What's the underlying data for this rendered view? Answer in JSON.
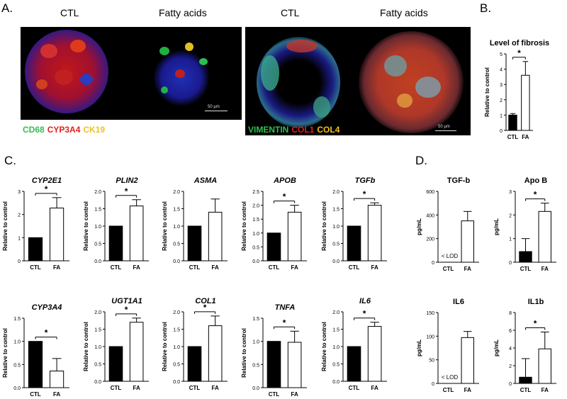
{
  "panels": {
    "A": "A.",
    "B": "B.",
    "C": "C.",
    "D": "D."
  },
  "panel_a": {
    "left": {
      "ctl_label": "CTL",
      "fa_label": "Fatty acids",
      "scale": "50 µm",
      "stains": [
        {
          "text": "CD68",
          "color": "#2fbf4f"
        },
        {
          "text": "CYP3A4",
          "color": "#e02020"
        },
        {
          "text": "CK19",
          "color": "#f0c020"
        }
      ]
    },
    "right": {
      "ctl_label": "CTL",
      "fa_label": "Fatty acids",
      "scale": "50 µm",
      "stains": [
        {
          "text": "VIMENTIN",
          "color": "#2fbf4f"
        },
        {
          "text": "COL1",
          "color": "#e02020"
        },
        {
          "text": "COL4",
          "color": "#f0c020"
        }
      ]
    }
  },
  "chart_data": [
    {
      "id": "fibrosis",
      "type": "bar",
      "title": "Level of fibrosis",
      "title_style": "bold",
      "categories": [
        "CTL",
        "FA"
      ],
      "values": [
        1.0,
        3.6
      ],
      "errors": [
        0.1,
        0.9
      ],
      "ylabel": "Relative to control",
      "ylim": [
        0,
        5
      ],
      "ticks": [
        "0",
        "1",
        "2",
        "3",
        "4",
        "5"
      ],
      "sig": "*"
    },
    {
      "id": "cyp2e1",
      "type": "bar",
      "title": "CYP2E1",
      "title_style": "italic",
      "categories": [
        "CTL",
        "FA"
      ],
      "values": [
        1.0,
        2.28
      ],
      "errors": [
        0,
        0.45
      ],
      "ylabel": "Relative to control",
      "ylim": [
        0,
        3
      ],
      "ticks": [
        "0",
        "1",
        "2",
        "3"
      ],
      "sig": "*"
    },
    {
      "id": "plin2",
      "type": "bar",
      "title": "PLIN2",
      "title_style": "italic",
      "categories": [
        "CTL",
        "FA"
      ],
      "values": [
        1.0,
        1.58
      ],
      "errors": [
        0,
        0.18
      ],
      "ylabel": "Relative to control",
      "ylim": [
        0,
        2
      ],
      "ticks": [
        "0.0",
        "0.5",
        "1.0",
        "1.5",
        "2.0"
      ],
      "sig": "*"
    },
    {
      "id": "asma",
      "type": "bar",
      "title": "ASMA",
      "title_style": "italic",
      "categories": [
        "CTL",
        "FA"
      ],
      "values": [
        1.0,
        1.4
      ],
      "errors": [
        0,
        0.38
      ],
      "ylabel": "Relative to control",
      "ylim": [
        0,
        2
      ],
      "ticks": [
        "0.0",
        "0.5",
        "1.0",
        "1.5",
        "2.0"
      ],
      "sig": ""
    },
    {
      "id": "apob",
      "type": "bar",
      "title": "APOB",
      "title_style": "italic",
      "categories": [
        "CTL",
        "FA"
      ],
      "values": [
        1.0,
        1.75
      ],
      "errors": [
        0,
        0.25
      ],
      "ylabel": "Relative to control",
      "ylim": [
        0,
        2.5
      ],
      "ticks": [
        "0.0",
        "0.5",
        "1.0",
        "1.5",
        "2.0",
        "2.5"
      ],
      "sig": "*"
    },
    {
      "id": "tgfb",
      "type": "bar",
      "title": "TGFb",
      "title_style": "italic",
      "categories": [
        "CTL",
        "FA"
      ],
      "values": [
        1.0,
        1.6
      ],
      "errors": [
        0,
        0.07
      ],
      "ylabel": "Relative to control",
      "ylim": [
        0,
        2
      ],
      "ticks": [
        "0.0",
        "0.5",
        "1.0",
        "1.5",
        "2.0"
      ],
      "sig": "*"
    },
    {
      "id": "cyp3a4",
      "type": "bar",
      "title": "CYP3A4",
      "title_style": "italic",
      "categories": [
        "CTL",
        "FA"
      ],
      "values": [
        1.0,
        0.36
      ],
      "errors": [
        0,
        0.27
      ],
      "ylabel": "Relative to control",
      "ylim": [
        0,
        1.5
      ],
      "ticks": [
        "0.0",
        "0.5",
        "1.0",
        "1.5"
      ],
      "sig": "*"
    },
    {
      "id": "ugt1a1",
      "type": "bar",
      "title": "UGT1A1",
      "title_style": "italic",
      "categories": [
        "CTL",
        "FA"
      ],
      "values": [
        1.0,
        1.7
      ],
      "errors": [
        0,
        0.12
      ],
      "ylabel": "Relative to control",
      "ylim": [
        0,
        2
      ],
      "ticks": [
        "0.0",
        "0.5",
        "1.0",
        "1.5",
        "2.0"
      ],
      "sig": "*"
    },
    {
      "id": "col1",
      "type": "bar",
      "title": "COL1",
      "title_style": "italic",
      "categories": [
        "CTL",
        "FA"
      ],
      "values": [
        1.0,
        1.6
      ],
      "errors": [
        0,
        0.28
      ],
      "ylabel": "Relative to control",
      "ylim": [
        0,
        2
      ],
      "ticks": [
        "0.0",
        "0.5",
        "1.0",
        "1.5",
        "2.0"
      ],
      "sig": "*"
    },
    {
      "id": "tnfa",
      "type": "bar",
      "title": "TNFA",
      "title_style": "italic",
      "categories": [
        "CTL",
        "FA"
      ],
      "values": [
        1.0,
        0.98
      ],
      "errors": [
        0,
        0.24
      ],
      "ylabel": "Relative to control",
      "ylim": [
        0,
        1.5
      ],
      "ticks": [
        "0.0",
        "0.5",
        "1.0",
        "1.5"
      ],
      "sig": "*"
    },
    {
      "id": "il6",
      "type": "bar",
      "title": "IL6",
      "title_style": "italic",
      "categories": [
        "CTL",
        "FA"
      ],
      "values": [
        1.0,
        1.58
      ],
      "errors": [
        0,
        0.12
      ],
      "ylabel": "Relative to control",
      "ylim": [
        0,
        2
      ],
      "ticks": [
        "0.0",
        "0.5",
        "1.0",
        "1.5",
        "2.0"
      ],
      "sig": "*"
    },
    {
      "id": "tgfb_protein",
      "type": "bar",
      "title": "TGF-b",
      "title_style": "normal",
      "categories": [
        "CTL",
        "FA"
      ],
      "values": [
        null,
        350
      ],
      "errors": [
        0,
        80
      ],
      "ylabel": "pg/mL",
      "ylim": [
        0,
        600
      ],
      "ticks": [
        "0",
        "200",
        "400",
        "600"
      ],
      "sig": "",
      "annotation": "< LOD"
    },
    {
      "id": "apob_protein",
      "type": "bar",
      "title": "Apo B",
      "title_style": "normal",
      "categories": [
        "CTL",
        "FA"
      ],
      "values": [
        0.45,
        2.15
      ],
      "errors": [
        0.55,
        0.35
      ],
      "ylabel": "pg/mL",
      "ylim": [
        0,
        3
      ],
      "ticks": [
        "0",
        "1",
        "2",
        "3"
      ],
      "sig": "*"
    },
    {
      "id": "il6_protein",
      "type": "bar",
      "title": "IL6",
      "title_style": "normal",
      "categories": [
        "CTL",
        "FA"
      ],
      "values": [
        null,
        97
      ],
      "errors": [
        0,
        13
      ],
      "ylabel": "pg/mL",
      "ylim": [
        0,
        150
      ],
      "ticks": [
        "0",
        "50",
        "100",
        "150"
      ],
      "sig": "",
      "annotation": "< LOD"
    },
    {
      "id": "il1b_protein",
      "type": "bar",
      "title": "IL1b",
      "title_style": "normal",
      "categories": [
        "CTL",
        "FA"
      ],
      "values": [
        0.7,
        3.9
      ],
      "errors": [
        2.1,
        1.9
      ],
      "ylabel": "pg/mL",
      "ylim": [
        0,
        8
      ],
      "ticks": [
        "0",
        "2",
        "4",
        "6",
        "8"
      ],
      "sig": "*"
    }
  ]
}
